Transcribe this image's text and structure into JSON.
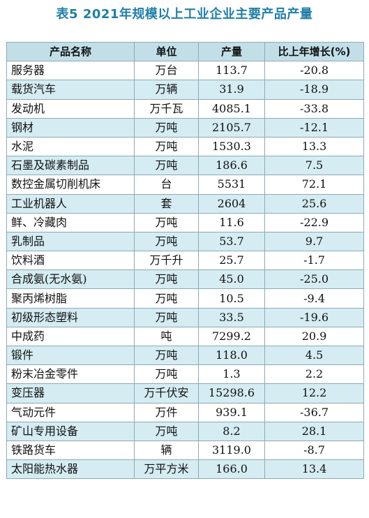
{
  "title": "表5 2021年规模以上工业企业主要产品产量",
  "headers": {
    "name": "产品名称",
    "unit": "单位",
    "output": "产量",
    "growth": "比上年增长(%)"
  },
  "rows": [
    {
      "name": "服务器",
      "unit": "万台",
      "output": "113.7",
      "growth": "-20.8"
    },
    {
      "name": "载货汽车",
      "unit": "万辆",
      "output": "31.9",
      "growth": "-18.9"
    },
    {
      "name": "发动机",
      "unit": "万千瓦",
      "output": "4085.1",
      "growth": "-33.8"
    },
    {
      "name": "钢材",
      "unit": "万吨",
      "output": "2105.7",
      "growth": "-12.1"
    },
    {
      "name": "水泥",
      "unit": "万吨",
      "output": "1530.3",
      "growth": "13.3"
    },
    {
      "name": "石墨及碳素制品",
      "unit": "万吨",
      "output": "186.6",
      "growth": "7.5"
    },
    {
      "name": "数控金属切削机床",
      "unit": "台",
      "output": "5531",
      "growth": "72.1"
    },
    {
      "name": "工业机器人",
      "unit": "套",
      "output": "2604",
      "growth": "25.6"
    },
    {
      "name": "鲜、冷藏肉",
      "unit": "万吨",
      "output": "11.6",
      "growth": "-22.9"
    },
    {
      "name": "乳制品",
      "unit": "万吨",
      "output": "53.7",
      "growth": "9.7"
    },
    {
      "name": "饮料酒",
      "unit": "万千升",
      "output": "25.7",
      "growth": "-1.7"
    },
    {
      "name": "合成氨(无水氨)",
      "unit": "万吨",
      "output": "45.0",
      "growth": "-25.0"
    },
    {
      "name": "聚丙烯树脂",
      "unit": "万吨",
      "output": "10.5",
      "growth": "-9.4"
    },
    {
      "name": "初级形态塑料",
      "unit": "万吨",
      "output": "33.5",
      "growth": "-19.6"
    },
    {
      "name": "中成药",
      "unit": "吨",
      "output": "7299.2",
      "growth": "20.9"
    },
    {
      "name": "锻件",
      "unit": "万吨",
      "output": "118.0",
      "growth": "4.5"
    },
    {
      "name": "粉末冶金零件",
      "unit": "万吨",
      "output": "1.3",
      "growth": "2.2"
    },
    {
      "name": "变压器",
      "unit": "万千伏安",
      "output": "15298.6",
      "growth": "12.2"
    },
    {
      "name": "气动元件",
      "unit": "万件",
      "output": "939.1",
      "growth": "-36.7"
    },
    {
      "name": "矿山专用设备",
      "unit": "万吨",
      "output": "8.2",
      "growth": "28.1"
    },
    {
      "name": "铁路货车",
      "unit": "辆",
      "output": "3119.0",
      "growth": "-8.7"
    },
    {
      "name": "太阳能热水器",
      "unit": "万平方米",
      "output": "166.0",
      "growth": "13.4"
    }
  ]
}
